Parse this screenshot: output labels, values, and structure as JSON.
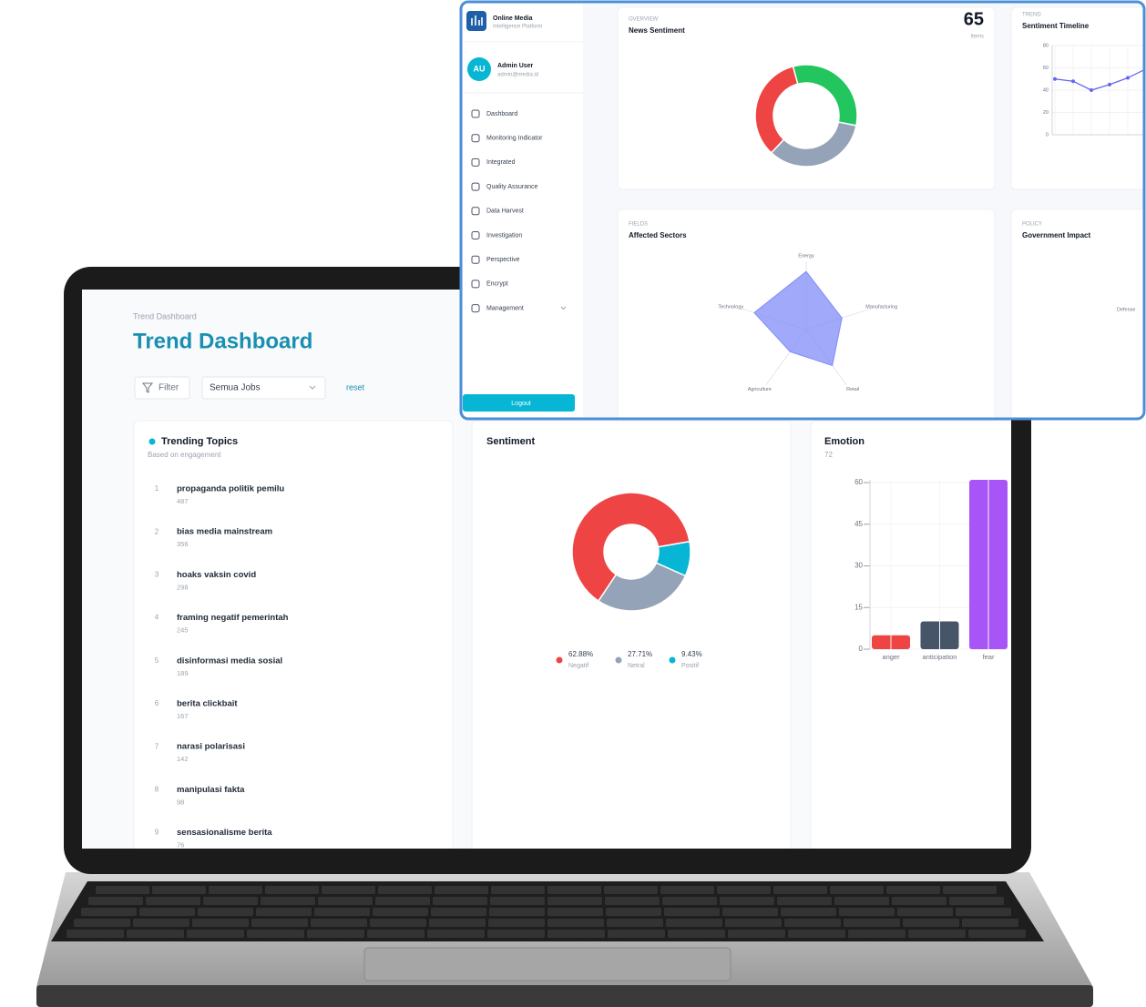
{
  "dashboard": {
    "breadcrumb": "Trend Dashboard",
    "title": "Trend Dashboard",
    "filter": "Filter",
    "job_select": "Semua Jobs",
    "reset": "reset",
    "trending_topics": {
      "title": "Trending Topics",
      "subtitle": "Based on engagement",
      "items": [
        {
          "rank": 1,
          "topic": "propaganda politik pemilu",
          "count": 487
        },
        {
          "rank": 2,
          "topic": "bias media mainstream",
          "count": 356
        },
        {
          "rank": 3,
          "topic": "hoaks vaksin covid",
          "count": 298
        },
        {
          "rank": 4,
          "topic": "framing negatif pemerintah",
          "count": 245
        },
        {
          "rank": 5,
          "topic": "disinformasi media sosial",
          "count": 189
        },
        {
          "rank": 6,
          "topic": "berita clickbait",
          "count": 167
        },
        {
          "rank": 7,
          "topic": "narasi polarisasi",
          "count": 142
        },
        {
          "rank": 8,
          "topic": "manipulasi fakta",
          "count": 98
        },
        {
          "rank": 9,
          "topic": "sensasionalisme berita",
          "count": 76
        }
      ]
    },
    "sentiment": {
      "type": "pie",
      "title": "Sentiment",
      "categories": [
        "Negatif",
        "Netral",
        "Positif"
      ],
      "values": [
        62.88,
        27.71,
        9.43
      ],
      "value_labels": [
        "62.88%",
        "27.71%",
        "9.43%"
      ],
      "colors": [
        "#ef4444",
        "#94a3b8",
        "#06b6d4"
      ]
    },
    "emotion": {
      "type": "bar",
      "title": "Emotion",
      "subtitle": "72",
      "categories": [
        "anger",
        "anticipation",
        "fear"
      ],
      "values": [
        5,
        10,
        61
      ],
      "colors": [
        "#ef4444",
        "#475569",
        "#a855f7"
      ],
      "ylim": [
        0,
        61
      ],
      "yticks": [
        0,
        15,
        30,
        45,
        60
      ],
      "grid": true
    }
  },
  "popup": {
    "sidebar": {
      "brand": "Online Media",
      "brand_sub": "Intelligence Platform",
      "avatar": "AU",
      "user": "Admin User",
      "email": "admin@media.id",
      "nav": [
        "Dashboard",
        "Monitoring Indicator",
        "Integrated",
        "Quality Assurance",
        "Data Harvest",
        "Investigation",
        "Perspective",
        "Encrypt",
        "Management"
      ],
      "logout": "Logout"
    },
    "news_sentiment": {
      "type": "pie",
      "eyebrow": "OVERVIEW",
      "title": "News Sentiment",
      "total": 65,
      "total_label": "Items",
      "values": [
        21,
        22,
        22
      ],
      "colors": [
        "#22c55e",
        "#94a3b8",
        "#ef4444"
      ]
    },
    "timeline": {
      "type": "line",
      "eyebrow": "TREND",
      "title": "Sentiment Timeline",
      "categories": [
        null,
        null,
        null,
        null,
        null,
        null
      ],
      "values": [
        50,
        48,
        40,
        45,
        51,
        59
      ],
      "color": "#6366f1",
      "ylim": [
        0,
        80
      ],
      "yticks": [
        0,
        20,
        40,
        60,
        80
      ],
      "grid": true
    },
    "sectors": {
      "type": "radar",
      "eyebrow": "FIELDS",
      "title": "Affected Sectors",
      "categories": [
        "Energy",
        "Manufacturing",
        "Retail",
        "Agriculture",
        "Technology"
      ],
      "values": [
        85,
        55,
        65,
        40,
        80
      ],
      "rlim": [
        0,
        100
      ],
      "color": "#818cf8"
    },
    "policy": {
      "eyebrow": "POLICY",
      "title": "Government Impact",
      "axis_labels": [
        "Defense"
      ]
    }
  }
}
